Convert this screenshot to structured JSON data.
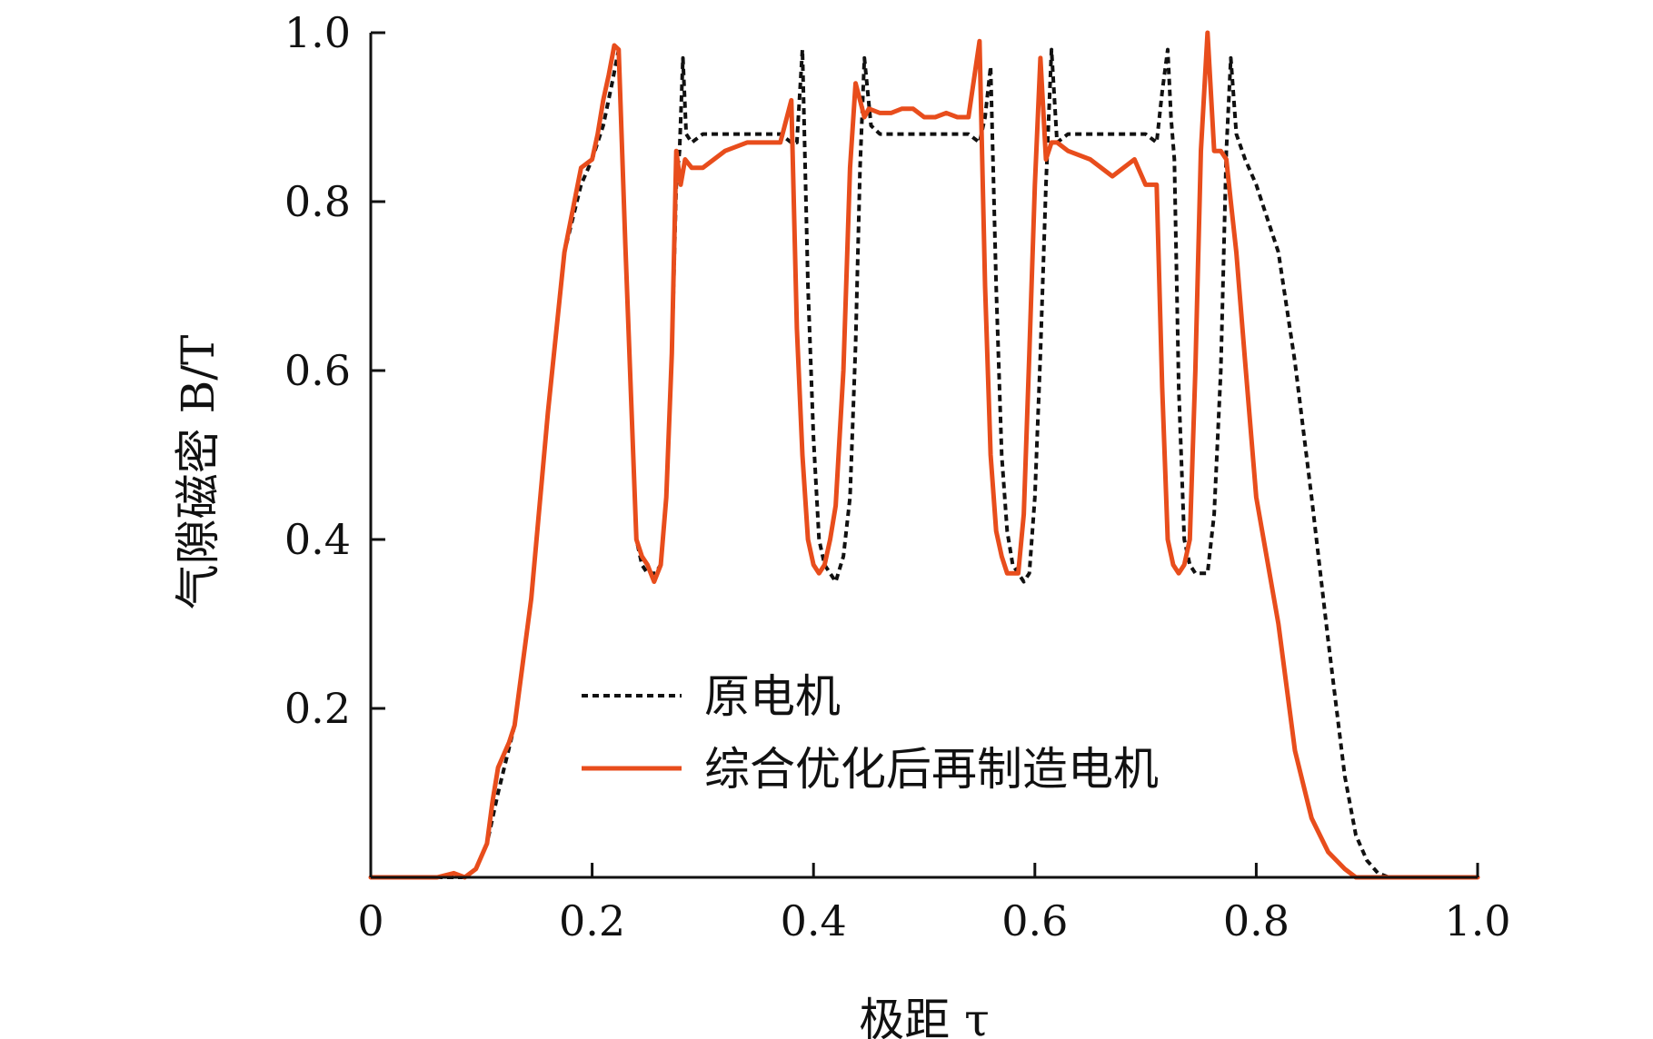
{
  "chart_data": {
    "type": "line",
    "xlabel": "极距 τ",
    "ylabel": "气隙磁密 B/T",
    "xlim": [
      0,
      1.0
    ],
    "ylim": [
      0,
      1.0
    ],
    "x_ticks": [
      {
        "value": 0,
        "label": "0"
      },
      {
        "value": 0.2,
        "label": "0.2"
      },
      {
        "value": 0.4,
        "label": "0.4"
      },
      {
        "value": 0.6,
        "label": "0.6"
      },
      {
        "value": 0.8,
        "label": "0.8"
      },
      {
        "value": 1.0,
        "label": "1.0"
      }
    ],
    "y_ticks": [
      {
        "value": 0.2,
        "label": "0.2"
      },
      {
        "value": 0.4,
        "label": "0.4"
      },
      {
        "value": 0.6,
        "label": "0.6"
      },
      {
        "value": 0.8,
        "label": "0.8"
      },
      {
        "value": 1.0,
        "label": "1.0"
      }
    ],
    "grid": false,
    "legend_position": "lower-center",
    "series": [
      {
        "name": "原电机",
        "color": "#111111",
        "style": "dashed",
        "x": [
          0,
          0.06,
          0.075,
          0.085,
          0.095,
          0.105,
          0.115,
          0.13,
          0.145,
          0.16,
          0.175,
          0.19,
          0.2,
          0.21,
          0.218,
          0.224,
          0.23,
          0.24,
          0.245,
          0.25,
          0.257,
          0.262,
          0.267,
          0.272,
          0.276,
          0.279,
          0.282,
          0.285,
          0.29,
          0.3,
          0.34,
          0.37,
          0.38,
          0.385,
          0.39,
          0.395,
          0.4,
          0.405,
          0.41,
          0.415,
          0.42,
          0.427,
          0.433,
          0.438,
          0.442,
          0.446,
          0.452,
          0.46,
          0.5,
          0.54,
          0.55,
          0.555,
          0.56,
          0.565,
          0.57,
          0.575,
          0.58,
          0.585,
          0.59,
          0.595,
          0.6,
          0.605,
          0.61,
          0.615,
          0.62,
          0.63,
          0.67,
          0.7,
          0.71,
          0.715,
          0.72,
          0.723,
          0.726,
          0.73,
          0.735,
          0.74,
          0.745,
          0.75,
          0.756,
          0.762,
          0.768,
          0.773,
          0.777,
          0.782,
          0.79,
          0.8,
          0.82,
          0.835,
          0.85,
          0.865,
          0.88,
          0.89,
          0.9,
          0.91,
          0.92,
          0.94,
          1.0
        ],
        "values": [
          0,
          0,
          0,
          0,
          0.01,
          0.04,
          0.1,
          0.18,
          0.33,
          0.55,
          0.74,
          0.82,
          0.85,
          0.89,
          0.94,
          0.98,
          0.75,
          0.4,
          0.37,
          0.36,
          0.36,
          0.37,
          0.45,
          0.62,
          0.82,
          0.86,
          0.97,
          0.88,
          0.87,
          0.88,
          0.88,
          0.88,
          0.87,
          0.87,
          0.98,
          0.7,
          0.52,
          0.4,
          0.37,
          0.36,
          0.35,
          0.38,
          0.45,
          0.63,
          0.84,
          0.97,
          0.89,
          0.88,
          0.88,
          0.88,
          0.87,
          0.9,
          0.96,
          0.7,
          0.5,
          0.41,
          0.37,
          0.36,
          0.35,
          0.36,
          0.45,
          0.62,
          0.82,
          0.98,
          0.87,
          0.88,
          0.88,
          0.88,
          0.87,
          0.93,
          0.98,
          0.9,
          0.85,
          0.58,
          0.4,
          0.37,
          0.36,
          0.36,
          0.36,
          0.43,
          0.6,
          0.86,
          0.97,
          0.88,
          0.85,
          0.82,
          0.74,
          0.61,
          0.45,
          0.28,
          0.12,
          0.05,
          0.02,
          0.005,
          0,
          0,
          0
        ]
      },
      {
        "name": "综合优化后再制造电机",
        "color": "#e84d1c",
        "style": "solid",
        "x": [
          0,
          0.06,
          0.075,
          0.085,
          0.095,
          0.105,
          0.11,
          0.115,
          0.125,
          0.13,
          0.145,
          0.16,
          0.175,
          0.19,
          0.2,
          0.205,
          0.21,
          0.215,
          0.22,
          0.224,
          0.23,
          0.24,
          0.245,
          0.25,
          0.256,
          0.262,
          0.267,
          0.272,
          0.276,
          0.28,
          0.284,
          0.29,
          0.3,
          0.32,
          0.34,
          0.36,
          0.37,
          0.38,
          0.385,
          0.39,
          0.395,
          0.4,
          0.405,
          0.41,
          0.415,
          0.42,
          0.427,
          0.433,
          0.438,
          0.442,
          0.446,
          0.45,
          0.46,
          0.47,
          0.48,
          0.49,
          0.5,
          0.51,
          0.52,
          0.53,
          0.54,
          0.55,
          0.555,
          0.56,
          0.565,
          0.57,
          0.575,
          0.58,
          0.585,
          0.59,
          0.595,
          0.6,
          0.605,
          0.61,
          0.615,
          0.62,
          0.63,
          0.65,
          0.67,
          0.69,
          0.7,
          0.71,
          0.715,
          0.72,
          0.725,
          0.73,
          0.735,
          0.74,
          0.745,
          0.75,
          0.756,
          0.762,
          0.768,
          0.773,
          0.777,
          0.782,
          0.79,
          0.8,
          0.82,
          0.835,
          0.85,
          0.865,
          0.88,
          0.89,
          0.9,
          0.91,
          0.92,
          0.94,
          1.0
        ],
        "values": [
          0,
          0,
          0.005,
          0,
          0.01,
          0.04,
          0.09,
          0.13,
          0.16,
          0.18,
          0.33,
          0.55,
          0.74,
          0.84,
          0.85,
          0.88,
          0.92,
          0.95,
          0.985,
          0.98,
          0.75,
          0.4,
          0.38,
          0.37,
          0.35,
          0.37,
          0.45,
          0.62,
          0.86,
          0.82,
          0.85,
          0.84,
          0.84,
          0.86,
          0.87,
          0.87,
          0.87,
          0.92,
          0.65,
          0.5,
          0.4,
          0.37,
          0.36,
          0.37,
          0.4,
          0.44,
          0.6,
          0.84,
          0.94,
          0.92,
          0.9,
          0.91,
          0.905,
          0.905,
          0.91,
          0.91,
          0.9,
          0.9,
          0.905,
          0.9,
          0.9,
          0.99,
          0.7,
          0.5,
          0.41,
          0.38,
          0.36,
          0.36,
          0.36,
          0.43,
          0.62,
          0.82,
          0.97,
          0.85,
          0.87,
          0.87,
          0.86,
          0.85,
          0.83,
          0.85,
          0.82,
          0.82,
          0.58,
          0.4,
          0.37,
          0.36,
          0.37,
          0.4,
          0.6,
          0.86,
          1.0,
          0.86,
          0.86,
          0.85,
          0.8,
          0.74,
          0.61,
          0.45,
          0.3,
          0.15,
          0.07,
          0.03,
          0.01,
          0,
          0,
          0,
          0,
          0,
          0
        ]
      }
    ]
  }
}
